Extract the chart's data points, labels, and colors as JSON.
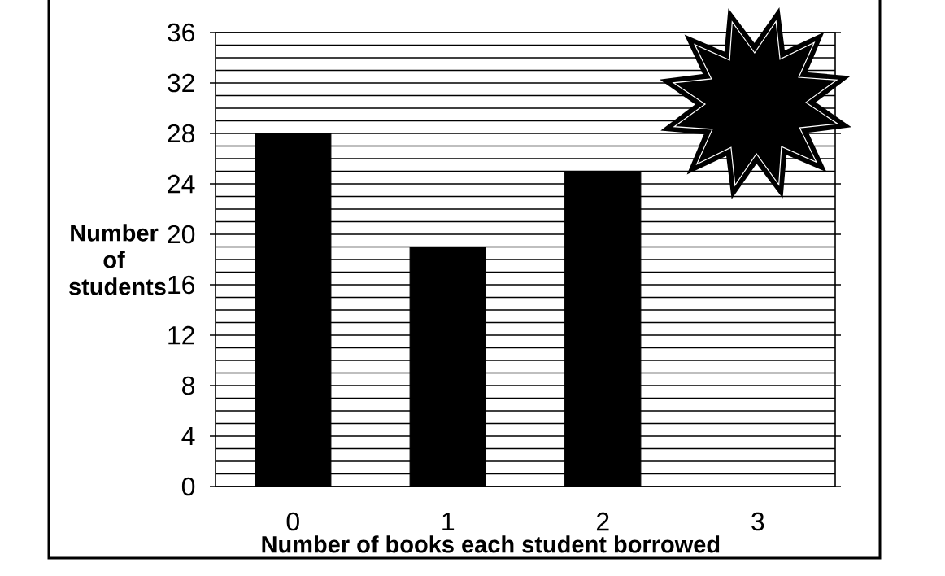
{
  "chart_data": {
    "type": "bar",
    "xlabel": "Number of books each student borrowed",
    "ylabel": "Number of students",
    "categories": [
      "0",
      "1",
      "2",
      "3"
    ],
    "values": [
      28,
      19,
      25,
      null
    ],
    "color": "#000000",
    "ylim": [
      0,
      36
    ],
    "yticks": [
      0,
      4,
      8,
      12,
      16,
      20,
      24,
      28,
      32,
      36
    ],
    "grid": "y"
  }
}
